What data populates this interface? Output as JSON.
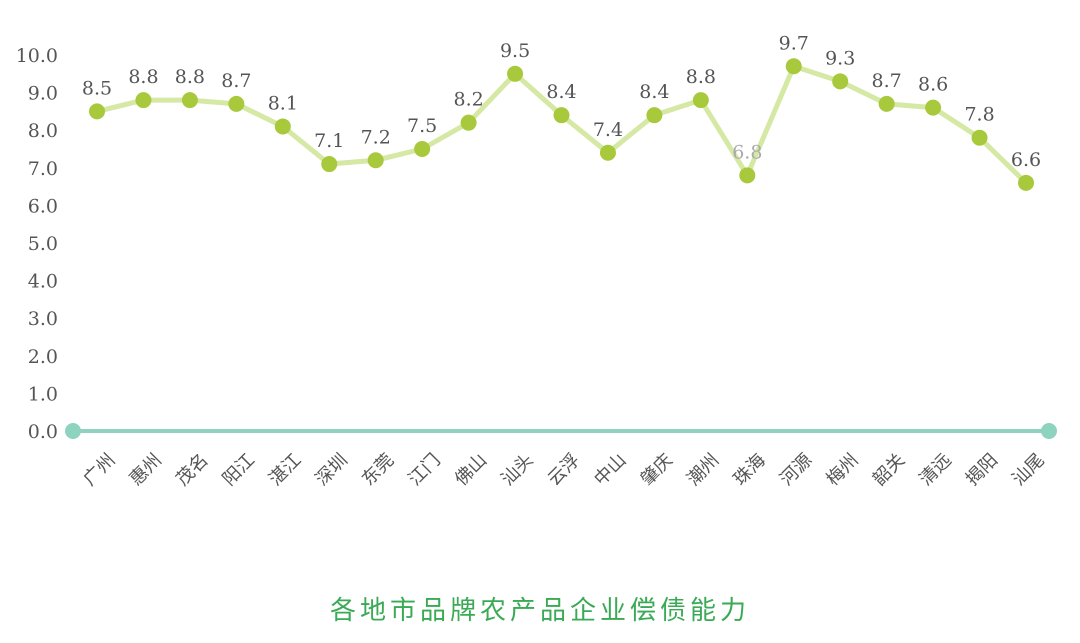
{
  "chart_data": {
    "type": "line",
    "title": "各地市品牌农产品企业偿债能力",
    "xlabel": "",
    "ylabel": "",
    "ylim": [
      0,
      10
    ],
    "yticks": [
      "0.0",
      "1.0",
      "2.0",
      "3.0",
      "4.0",
      "5.0",
      "6.0",
      "7.0",
      "8.0",
      "9.0",
      "10.0"
    ],
    "grid": false,
    "categories": [
      "广州",
      "惠州",
      "茂名",
      "阳江",
      "湛江",
      "深圳",
      "东莞",
      "江门",
      "佛山",
      "汕头",
      "云浮",
      "中山",
      "肇庆",
      "潮州",
      "珠海",
      "河源",
      "梅州",
      "韶关",
      "清远",
      "揭阳",
      "汕尾"
    ],
    "values": [
      8.5,
      8.8,
      8.8,
      8.7,
      8.1,
      7.1,
      7.2,
      7.5,
      8.2,
      9.5,
      8.4,
      7.4,
      8.4,
      8.8,
      6.8,
      9.7,
      9.3,
      8.7,
      8.6,
      7.8,
      6.6
    ],
    "data_labels": [
      "8.5",
      "8.8",
      "8.8",
      "8.7",
      "8.1",
      "7.1",
      "7.2",
      "7.5",
      "8.2",
      "9.5",
      "8.4",
      "7.4",
      "8.4",
      "8.8",
      "6.8",
      "9.7",
      "9.3",
      "8.7",
      "8.6",
      "7.8",
      "6.6"
    ],
    "colors": {
      "line": "#d5e8a4",
      "marker": "#a8c93c",
      "axis": "#8ed3bf",
      "title": "#3aaa55",
      "text": "#555555"
    }
  }
}
